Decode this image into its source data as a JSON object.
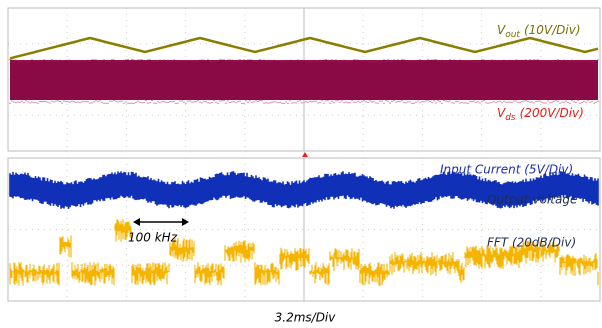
{
  "top_panel": {
    "vout_label": {
      "symbol": "V",
      "subscript": "out",
      "scale": "(10V/Div)"
    },
    "vds_label": {
      "symbol": "V",
      "subscript": "ds",
      "scale": "(200V/Div)"
    }
  },
  "bottom_panel": {
    "current_label": "Input Current (5V/Div)",
    "fft_label": [
      "Output voltage",
      "FFT (20dB/Div)"
    ],
    "marker_label": "100 kHz"
  },
  "time_scale": "3.2ms/Div"
}
